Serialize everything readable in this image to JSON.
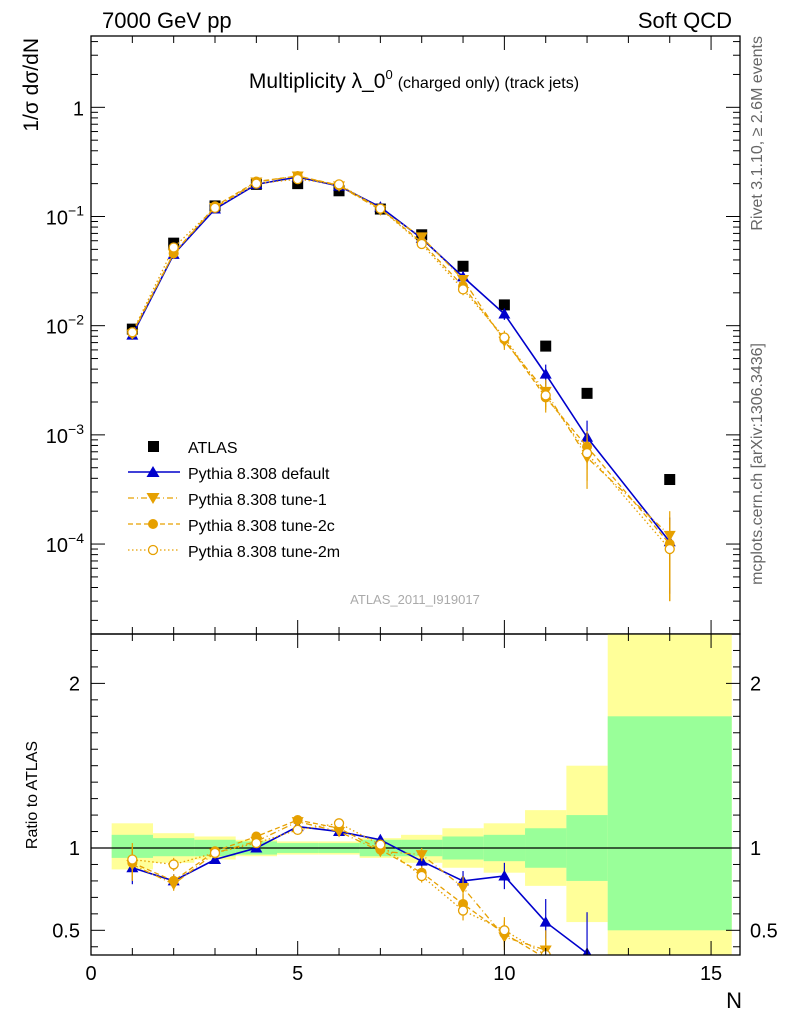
{
  "header": {
    "left": "7000 GeV pp",
    "right": "Soft QCD"
  },
  "side_labels": {
    "rivet": "Rivet 3.1.10, ≥ 2.6M events",
    "mcplots": "mcplots.cern.ch [arXiv:1306.3436]"
  },
  "analysis_id": "ATLAS_2011_I919017",
  "colors": {
    "atlas": "#000000",
    "default": "#0000cc",
    "tune": "#e6a000",
    "band_inner": "#99ff99",
    "band_outer": "#ffff99"
  },
  "chart_data": [
    {
      "type": "scatter",
      "title_main": "Multiplicity λ_0",
      "title_sup": "0",
      "title_tail": "(charged only) (track jets)",
      "ylabel": "1/σ dσ/dN",
      "yscale": "log",
      "xlim": [
        0,
        15.7
      ],
      "ylim": [
        1.5e-05,
        4.5
      ],
      "yticks": [
        {
          "value": 0.0001,
          "base": "10",
          "exp": "−4"
        },
        {
          "value": 0.001,
          "base": "10",
          "exp": "−3"
        },
        {
          "value": 0.01,
          "base": "10",
          "exp": "−2"
        },
        {
          "value": 0.1,
          "base": "10",
          "exp": "−1"
        },
        {
          "value": 1,
          "base": "1",
          "exp": ""
        }
      ],
      "legend_position": "left-center",
      "series": [
        {
          "name": "ATLAS",
          "style": "data",
          "x": [
            1,
            2,
            3,
            4,
            5,
            6,
            7,
            8,
            9,
            10,
            11,
            12,
            14
          ],
          "y": [
            0.0093,
            0.057,
            0.125,
            0.197,
            0.2,
            0.172,
            0.117,
            0.068,
            0.035,
            0.0155,
            0.0065,
            0.0024,
            0.00039
          ]
        },
        {
          "name": "Pythia 8.308 default",
          "style": "default",
          "x": [
            1,
            2,
            3,
            4,
            5,
            6,
            7,
            8,
            9,
            10,
            11,
            12,
            14
          ],
          "y": [
            0.0082,
            0.045,
            0.117,
            0.197,
            0.23,
            0.19,
            0.122,
            0.063,
            0.028,
            0.0128,
            0.0036,
            0.00095,
            0.000105
          ],
          "err": [
            0.0008,
            0.002,
            0.004,
            0.005,
            0.005,
            0.005,
            0.004,
            0.003,
            0.0025,
            0.0015,
            0.0008,
            0.0004,
            7e-05
          ]
        },
        {
          "name": "Pythia 8.308 tune-1",
          "style": "tune1",
          "x": [
            1,
            2,
            3,
            4,
            5,
            6,
            7,
            8,
            9,
            10,
            11,
            12,
            14
          ],
          "y": [
            0.0084,
            0.046,
            0.121,
            0.207,
            0.235,
            0.191,
            0.115,
            0.065,
            0.0265,
            0.0072,
            0.0025,
            0.00062,
            0.00012
          ],
          "err": [
            0.0008,
            0.002,
            0.004,
            0.005,
            0.005,
            0.005,
            0.004,
            0.003,
            0.0025,
            0.0012,
            0.0007,
            0.0003,
            8e-05
          ]
        },
        {
          "name": "Pythia 8.308 tune-2c",
          "style": "tune2c",
          "x": [
            1,
            2,
            3,
            4,
            5,
            6,
            7,
            8,
            9,
            10,
            11,
            12,
            14
          ],
          "y": [
            0.0086,
            0.046,
            0.124,
            0.209,
            0.235,
            0.193,
            0.118,
            0.058,
            0.023,
            0.0075,
            0.0022,
            0.00078,
            0.0001
          ],
          "err": [
            0.0008,
            0.002,
            0.004,
            0.005,
            0.005,
            0.005,
            0.004,
            0.003,
            0.0025,
            0.0012,
            0.0006,
            0.0003,
            7e-05
          ]
        },
        {
          "name": "Pythia 8.308 tune-2m",
          "style": "tune2m",
          "x": [
            1,
            2,
            3,
            4,
            5,
            6,
            7,
            8,
            9,
            10,
            11,
            12,
            14
          ],
          "y": [
            0.0087,
            0.052,
            0.12,
            0.2,
            0.22,
            0.197,
            0.118,
            0.056,
            0.0215,
            0.0078,
            0.0023,
            0.00068,
            9e-05
          ],
          "err": [
            0.0008,
            0.002,
            0.004,
            0.005,
            0.005,
            0.005,
            0.004,
            0.003,
            0.0025,
            0.0012,
            0.0006,
            0.0003,
            6e-05
          ]
        }
      ]
    },
    {
      "type": "scatter",
      "ylabel": "Ratio to ATLAS",
      "xlabel": "N",
      "xlim": [
        0,
        15.7
      ],
      "ylim": [
        0.35,
        2.3
      ],
      "xticks": [
        0,
        5,
        10,
        15
      ],
      "yticks": [
        0.5,
        1,
        2
      ],
      "reference_line": 1,
      "bands": [
        {
          "xlo": 0.5,
          "xhi": 1.5,
          "inner": [
            0.94,
            1.08
          ],
          "outer": [
            0.87,
            1.15
          ]
        },
        {
          "xlo": 1.5,
          "xhi": 2.5,
          "inner": [
            0.95,
            1.06
          ],
          "outer": [
            0.91,
            1.09
          ]
        },
        {
          "xlo": 2.5,
          "xhi": 3.5,
          "inner": [
            0.95,
            1.05
          ],
          "outer": [
            0.93,
            1.07
          ]
        },
        {
          "xlo": 3.5,
          "xhi": 4.5,
          "inner": [
            0.96,
            1.04
          ],
          "outer": [
            0.95,
            1.05
          ]
        },
        {
          "xlo": 4.5,
          "xhi": 5.5,
          "inner": [
            0.97,
            1.03
          ],
          "outer": [
            0.96,
            1.04
          ]
        },
        {
          "xlo": 5.5,
          "xhi": 6.5,
          "inner": [
            0.97,
            1.03
          ],
          "outer": [
            0.96,
            1.04
          ]
        },
        {
          "xlo": 6.5,
          "xhi": 7.5,
          "inner": [
            0.95,
            1.05
          ],
          "outer": [
            0.94,
            1.06
          ]
        },
        {
          "xlo": 7.5,
          "xhi": 8.5,
          "inner": [
            0.95,
            1.05
          ],
          "outer": [
            0.91,
            1.08
          ]
        },
        {
          "xlo": 8.5,
          "xhi": 9.5,
          "inner": [
            0.93,
            1.07
          ],
          "outer": [
            0.88,
            1.12
          ]
        },
        {
          "xlo": 9.5,
          "xhi": 10.5,
          "inner": [
            0.92,
            1.08
          ],
          "outer": [
            0.85,
            1.15
          ]
        },
        {
          "xlo": 10.5,
          "xhi": 11.5,
          "inner": [
            0.88,
            1.12
          ],
          "outer": [
            0.77,
            1.23
          ]
        },
        {
          "xlo": 11.5,
          "xhi": 12.5,
          "inner": [
            0.8,
            1.2
          ],
          "outer": [
            0.55,
            1.5
          ]
        },
        {
          "xlo": 12.5,
          "xhi": 15.5,
          "inner": [
            0.5,
            1.8
          ],
          "outer": [
            0.35,
            2.3
          ]
        }
      ],
      "series": [
        {
          "name": "Pythia 8.308 default",
          "style": "default",
          "x": [
            1,
            2,
            3,
            4,
            5,
            6,
            7,
            8,
            9,
            10,
            11,
            12
          ],
          "y": [
            0.88,
            0.8,
            0.93,
            1.0,
            1.13,
            1.1,
            1.05,
            0.92,
            0.8,
            0.83,
            0.55,
            0.36
          ],
          "err": [
            0.1,
            0.04,
            0.02,
            0.02,
            0.02,
            0.02,
            0.03,
            0.04,
            0.06,
            0.08,
            0.14,
            0.25
          ]
        },
        {
          "name": "Pythia 8.308 tune-1",
          "style": "tune1",
          "x": [
            1,
            2,
            3,
            4,
            5,
            6,
            7,
            8,
            9,
            10,
            11
          ],
          "y": [
            0.9,
            0.78,
            0.97,
            1.04,
            1.16,
            1.1,
            0.98,
            0.96,
            0.76,
            0.46,
            0.38
          ],
          "err": [
            0.1,
            0.04,
            0.02,
            0.02,
            0.02,
            0.02,
            0.03,
            0.04,
            0.07,
            0.08,
            0.12
          ]
        },
        {
          "name": "Pythia 8.308 tune-2c",
          "style": "tune2c",
          "x": [
            1,
            2,
            3,
            4,
            5,
            6,
            7,
            8,
            9,
            10,
            11
          ],
          "y": [
            0.91,
            0.8,
            0.98,
            1.07,
            1.17,
            1.12,
            0.99,
            0.85,
            0.66,
            0.48,
            0.33
          ],
          "err": [
            0.1,
            0.04,
            0.02,
            0.02,
            0.02,
            0.02,
            0.03,
            0.04,
            0.06,
            0.08,
            0.1
          ]
        },
        {
          "name": "Pythia 8.308 tune-2m",
          "style": "tune2m",
          "x": [
            1,
            2,
            3,
            4,
            5,
            6,
            7,
            8,
            9,
            10,
            11
          ],
          "y": [
            0.93,
            0.9,
            0.97,
            1.03,
            1.11,
            1.15,
            1.02,
            0.83,
            0.62,
            0.5,
            0.35
          ],
          "err": [
            0.1,
            0.04,
            0.02,
            0.02,
            0.02,
            0.02,
            0.03,
            0.04,
            0.06,
            0.08,
            0.1
          ]
        }
      ]
    }
  ]
}
